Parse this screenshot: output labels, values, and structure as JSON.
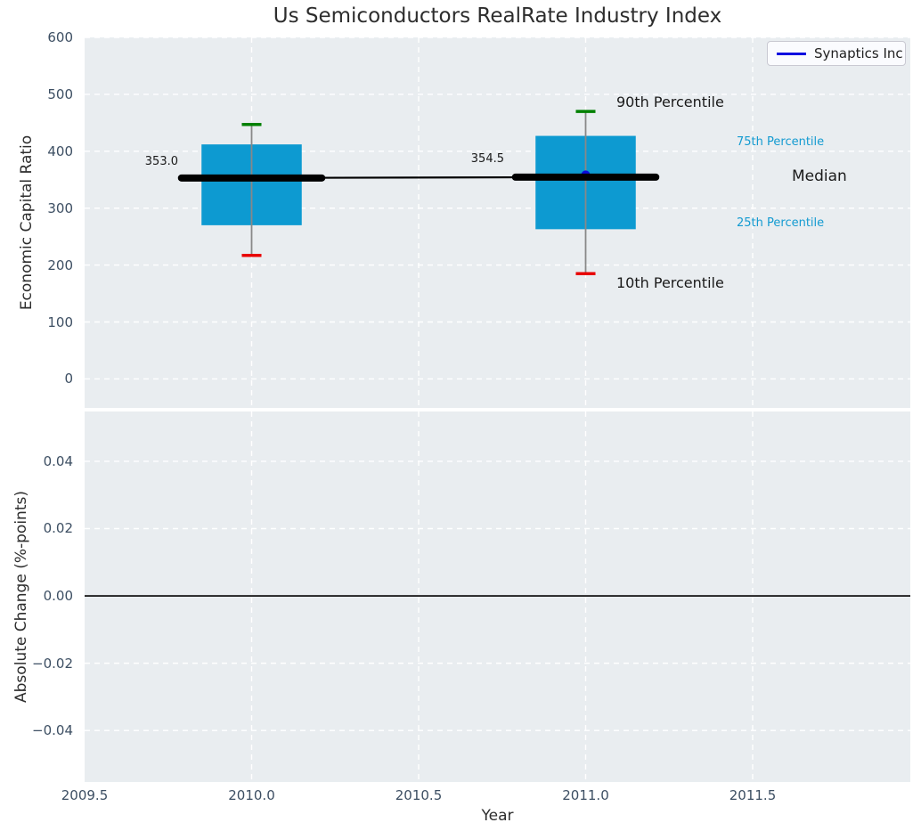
{
  "title": "Us Semiconductors RealRate Industry Index",
  "legend": {
    "label": "Synaptics Inc"
  },
  "annotations": {
    "p90": "90th Percentile",
    "p75": "75th Percentile",
    "median": "Median",
    "p25": "25th Percentile",
    "p10": "10th Percentile",
    "value_2010": "353.0",
    "value_2011": "354.5"
  },
  "colors": {
    "box_fill": "#0d9ad1",
    "p90_cap": "#008000",
    "p10_cap": "#e80000",
    "median_line": "#000000",
    "median_trend": "#000000",
    "whisker": "#888888",
    "synaptics": "#0b0bdd",
    "plot_bg": "#e9edf0",
    "grid": "#ffffff",
    "zero_line": "#000000",
    "tick_label": "#3d4f63",
    "percentile_label": "#149bd1",
    "text_dark": "#2d2d2d"
  },
  "chart_data": {
    "type": "boxplot",
    "title": "Us Semiconductors RealRate Industry Index",
    "xlabel": "Year",
    "xlim": [
      2009.5,
      2011.972
    ],
    "xticks": [
      {
        "value": 2009.5,
        "label": "2009.5"
      },
      {
        "value": 2010.0,
        "label": "2010.0"
      },
      {
        "value": 2010.5,
        "label": "2010.5"
      },
      {
        "value": 2011.0,
        "label": "2011.0"
      },
      {
        "value": 2011.5,
        "label": "2011.5"
      }
    ],
    "grid": {
      "style": "dashed",
      "color": "#ffffff"
    },
    "legend_position": "upper right",
    "top": {
      "ylabel": "Economic Capital Ratio",
      "ylim": [
        -51,
        600
      ],
      "yticks": [
        {
          "value": 0,
          "label": "0"
        },
        {
          "value": 100,
          "label": "100"
        },
        {
          "value": 200,
          "label": "200"
        },
        {
          "value": 300,
          "label": "300"
        },
        {
          "value": 400,
          "label": "400"
        },
        {
          "value": 500,
          "label": "500"
        },
        {
          "value": 600,
          "label": "600"
        }
      ],
      "boxes": [
        {
          "year": 2010,
          "p10": 217,
          "q1": 270,
          "median": 353.0,
          "q3": 412,
          "p90": 447,
          "median_label": "353.0"
        },
        {
          "year": 2011,
          "p10": 185,
          "q1": 263,
          "median": 354.5,
          "q3": 427,
          "p90": 470,
          "median_label": "354.5"
        }
      ],
      "median_trend": [
        {
          "year": 2010,
          "value": 353.0
        },
        {
          "year": 2011,
          "value": 354.5
        }
      ],
      "series": [
        {
          "name": "Synaptics Inc",
          "points": [
            {
              "year": 2011,
              "value": 354.5
            }
          ]
        }
      ]
    },
    "bottom": {
      "ylabel": "Absolute Change (%-points)",
      "ylim": [
        -0.0553,
        0.0548
      ],
      "yticks": [
        {
          "value": -0.04,
          "label": "−0.04"
        },
        {
          "value": -0.02,
          "label": "−0.02"
        },
        {
          "value": 0.0,
          "label": "0.00"
        },
        {
          "value": 0.02,
          "label": "0.02"
        },
        {
          "value": 0.04,
          "label": "0.04"
        }
      ],
      "zero_line": 0.0,
      "series": []
    }
  }
}
